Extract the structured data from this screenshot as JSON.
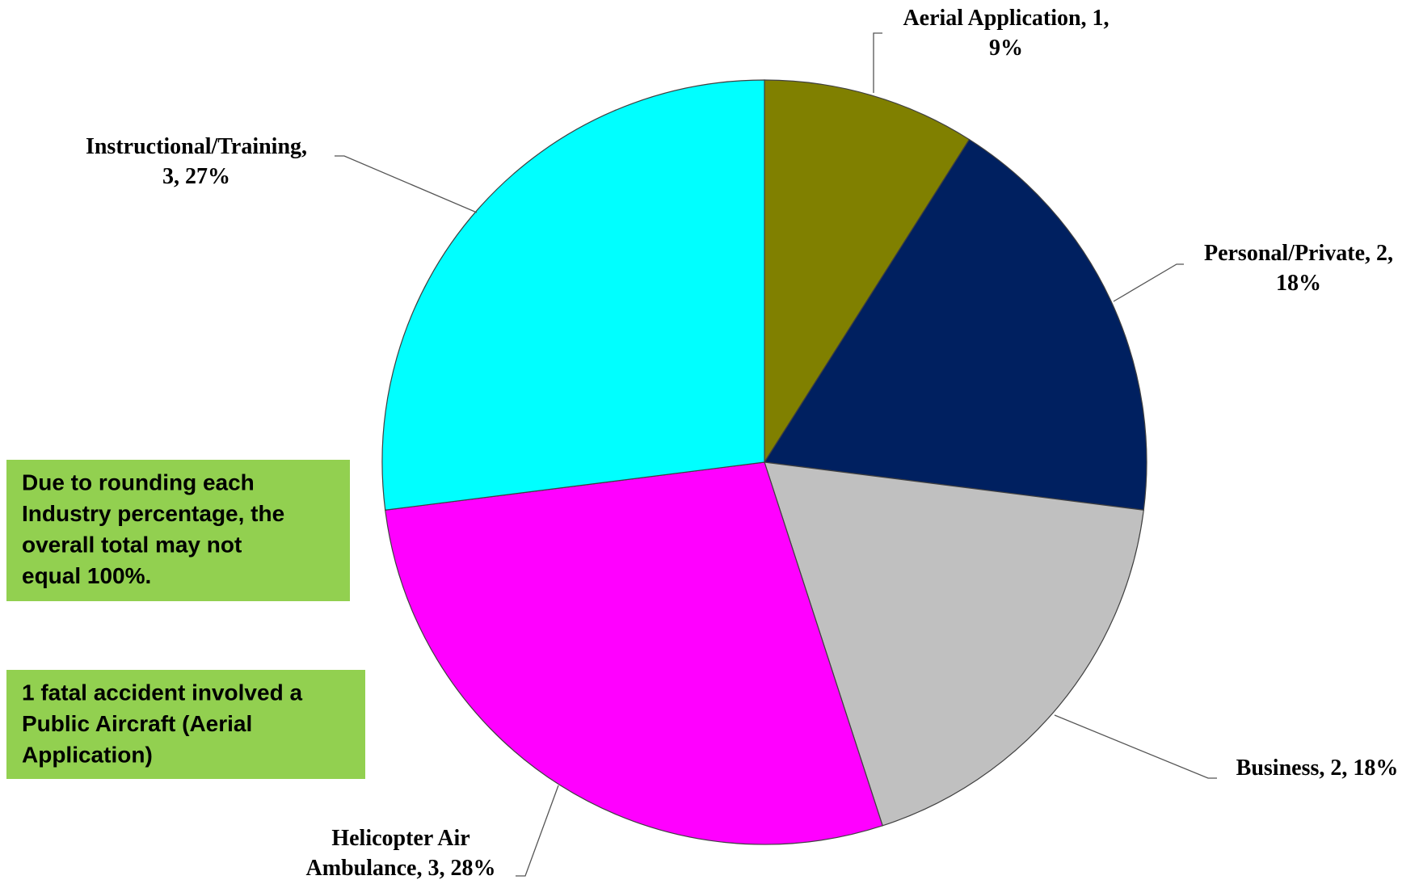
{
  "chart_data": {
    "type": "pie",
    "series": [
      {
        "categories": [
          "Aerial Application",
          "Personal/Private",
          "Business",
          "Helicopter Air Ambulance",
          "Instructional/Training"
        ],
        "values": [
          1,
          2,
          2,
          3,
          3
        ],
        "percents": [
          9,
          18,
          18,
          28,
          27
        ],
        "value_labels": [
          "Aerial Application, 1,\n9%",
          "Personal/Private,  2,\n18%",
          "Business, 2, 18%",
          "Helicopter Air\nAmbulance, 3, 28%",
          "Instructional/Training,\n3, 27%"
        ],
        "colors": [
          "#808000",
          "#002060",
          "#c0c0c0",
          "#ff00ff",
          "#00ffff"
        ]
      }
    ],
    "notes": [
      [
        "Due to rounding each",
        "Industry percentage, the",
        "overall total may not",
        "equal 100%."
      ],
      [
        "1 fatal accident involved a",
        "Public Aircraft (Aerial",
        "Application)"
      ]
    ]
  }
}
